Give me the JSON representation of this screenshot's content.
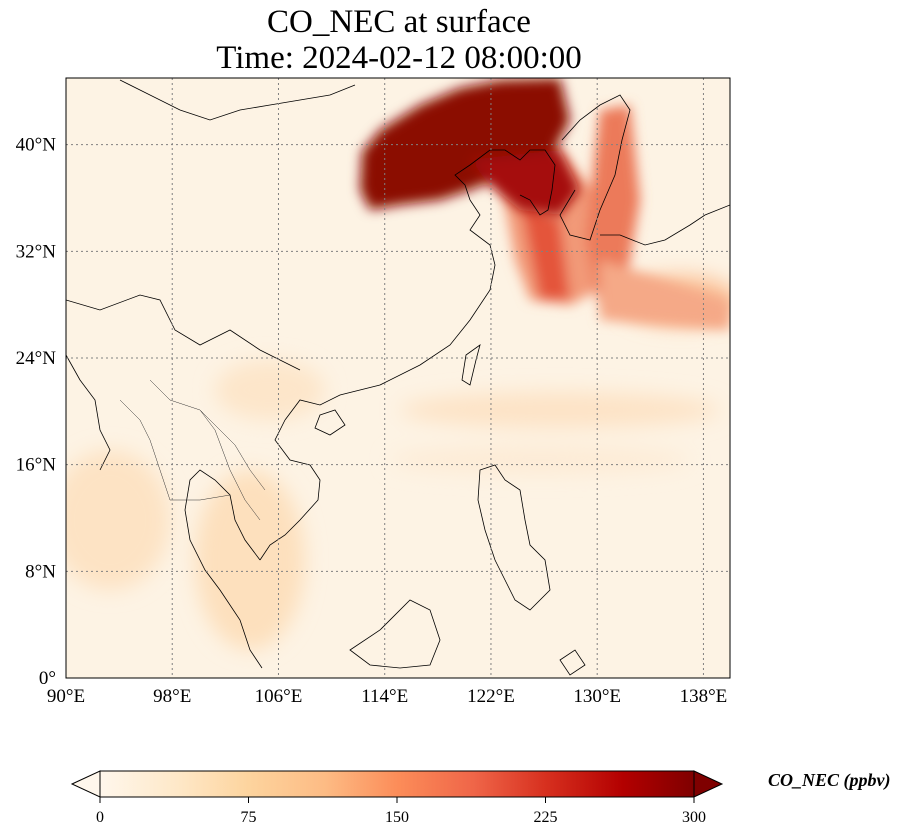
{
  "title": {
    "line1": "CO_NEC at surface",
    "line2": "Time: 2024-02-12 08:00:00"
  },
  "map": {
    "lon_range": [
      90,
      140
    ],
    "lat_range": [
      0,
      45
    ],
    "lon_ticks": [
      "90°E",
      "98°E",
      "106°E",
      "114°E",
      "122°E",
      "130°E",
      "138°E"
    ],
    "lat_ticks": [
      "0°",
      "8°N",
      "16°N",
      "24°N",
      "32°N",
      "40°N"
    ],
    "gridlines": true,
    "features": [
      "coastlines",
      "country-borders"
    ],
    "high_concentration_region": "northeast China, Korean Peninsula, Yellow Sea and southern Japan"
  },
  "colorbar": {
    "label": "CO_NEC (ppbv)",
    "ticks": [
      "0",
      "75",
      "150",
      "225",
      "300"
    ],
    "min": 0,
    "max": 300,
    "extend": "both",
    "colormap": "OrRd",
    "colors": [
      "#fff7ec",
      "#fee8c8",
      "#fdd49e",
      "#fdbb84",
      "#fc8d59",
      "#ef6548",
      "#d7301f",
      "#b30000",
      "#7f0000"
    ]
  }
}
